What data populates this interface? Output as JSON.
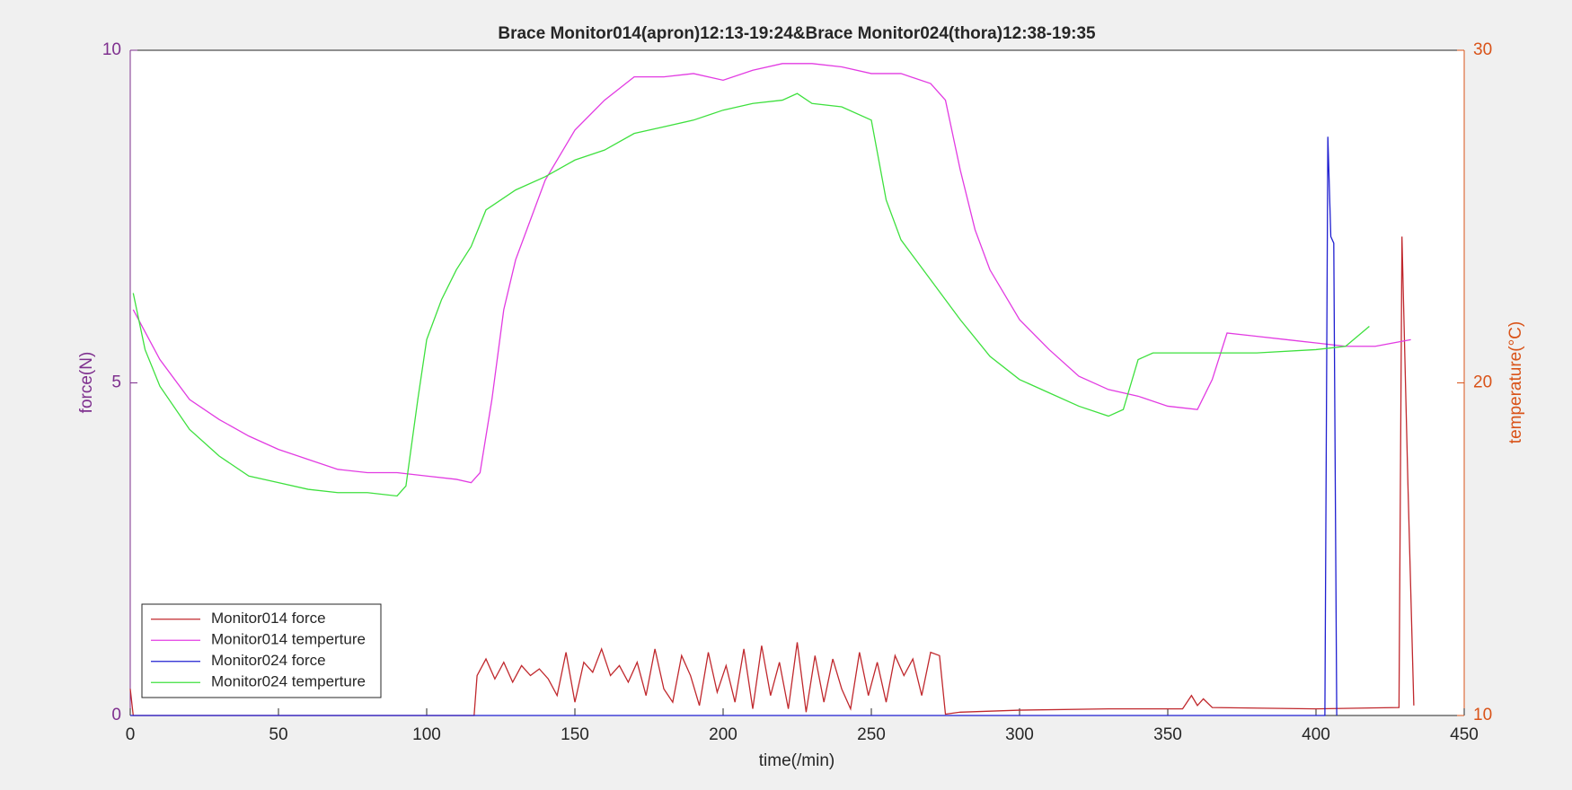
{
  "chart_data": {
    "type": "line",
    "title": "Brace Monitor014(apron)12:13-19:24&Brace Monitor024(thora)12:38-19:35",
    "xlabel": "time(/min)",
    "ylabel": "force(N)",
    "y2label": "temperature(°C)",
    "xlim": [
      0,
      450
    ],
    "xticks": [
      0,
      50,
      100,
      150,
      200,
      250,
      300,
      350,
      400,
      450
    ],
    "ylim": [
      0,
      10
    ],
    "yticks": [
      0,
      5,
      10
    ],
    "y2lim": [
      10,
      30
    ],
    "y2ticks": [
      10,
      20,
      30
    ],
    "ycolor": "#7e2f8e",
    "y2color": "#d95319",
    "legend": "lower left",
    "series": [
      {
        "name": "Monitor014 force",
        "color": "#c0282d",
        "axis": "y",
        "x": [
          0,
          1,
          116,
          117,
          120,
          123,
          126,
          129,
          132,
          135,
          138,
          141,
          144,
          147,
          150,
          153,
          156,
          159,
          162,
          165,
          168,
          171,
          174,
          177,
          180,
          183,
          186,
          189,
          192,
          195,
          198,
          201,
          204,
          207,
          210,
          213,
          216,
          219,
          222,
          225,
          228,
          231,
          234,
          237,
          240,
          243,
          246,
          249,
          252,
          255,
          258,
          261,
          264,
          267,
          270,
          273,
          275,
          280,
          300,
          330,
          355,
          358,
          360,
          362,
          365,
          400,
          428,
          429,
          431,
          433
        ],
        "values": [
          0.4,
          0,
          0,
          0.6,
          0.85,
          0.55,
          0.8,
          0.5,
          0.75,
          0.6,
          0.7,
          0.55,
          0.3,
          0.95,
          0.2,
          0.8,
          0.65,
          1.0,
          0.6,
          0.75,
          0.5,
          0.8,
          0.3,
          1.0,
          0.4,
          0.2,
          0.9,
          0.6,
          0.15,
          0.95,
          0.35,
          0.75,
          0.2,
          1.0,
          0.1,
          1.05,
          0.3,
          0.8,
          0.1,
          1.1,
          0.05,
          0.9,
          0.2,
          0.85,
          0.4,
          0.1,
          0.95,
          0.3,
          0.8,
          0.2,
          0.9,
          0.6,
          0.85,
          0.3,
          0.95,
          0.9,
          0.02,
          0.05,
          0.08,
          0.1,
          0.1,
          0.3,
          0.15,
          0.25,
          0.12,
          0.1,
          0.12,
          7.2,
          3.5,
          0.15
        ]
      },
      {
        "name": "Monitor014 temperture",
        "color": "#e23be2",
        "axis": "y2",
        "x": [
          1,
          10,
          20,
          30,
          40,
          50,
          60,
          70,
          80,
          90,
          100,
          110,
          115,
          118,
          122,
          126,
          130,
          140,
          150,
          160,
          170,
          180,
          190,
          200,
          210,
          220,
          230,
          240,
          250,
          260,
          270,
          275,
          280,
          285,
          290,
          300,
          310,
          320,
          330,
          340,
          350,
          360,
          365,
          370,
          380,
          390,
          400,
          410,
          420,
          432
        ],
        "values": [
          22.2,
          20.7,
          19.5,
          18.9,
          18.4,
          18.0,
          17.7,
          17.4,
          17.3,
          17.3,
          17.2,
          17.1,
          17.0,
          17.3,
          19.5,
          22.2,
          23.7,
          26.1,
          27.6,
          28.5,
          29.2,
          29.2,
          29.3,
          29.1,
          29.4,
          29.6,
          29.6,
          29.5,
          29.3,
          29.3,
          29.0,
          28.5,
          26.4,
          24.6,
          23.4,
          21.9,
          21.0,
          20.2,
          19.8,
          19.6,
          19.3,
          19.2,
          20.1,
          21.5,
          21.4,
          21.3,
          21.2,
          21.1,
          21.1,
          21.3
        ]
      },
      {
        "name": "Monitor024 force",
        "color": "#1f1fd0",
        "axis": "y",
        "x": [
          0,
          403,
          404,
          405,
          406,
          407
        ],
        "values": [
          0,
          0,
          8.7,
          7.2,
          7.1,
          0
        ]
      },
      {
        "name": "Monitor024 temperture",
        "color": "#3ee03e",
        "axis": "y2",
        "x": [
          1,
          5,
          10,
          20,
          30,
          40,
          50,
          60,
          70,
          80,
          90,
          93,
          97,
          100,
          105,
          110,
          115,
          120,
          130,
          140,
          150,
          160,
          170,
          180,
          190,
          200,
          210,
          220,
          225,
          230,
          240,
          250,
          255,
          260,
          270,
          280,
          290,
          300,
          310,
          320,
          330,
          335,
          340,
          345,
          360,
          380,
          400,
          410,
          418
        ],
        "values": [
          22.7,
          21.0,
          19.9,
          18.6,
          17.8,
          17.2,
          17.0,
          16.8,
          16.7,
          16.7,
          16.6,
          16.9,
          19.5,
          21.3,
          22.5,
          23.4,
          24.1,
          25.2,
          25.8,
          26.2,
          26.7,
          27.0,
          27.5,
          27.7,
          27.9,
          28.2,
          28.4,
          28.5,
          28.7,
          28.4,
          28.3,
          27.9,
          25.5,
          24.3,
          23.1,
          21.9,
          20.8,
          20.1,
          19.7,
          19.3,
          19.0,
          19.2,
          20.7,
          20.9,
          20.9,
          20.9,
          21.0,
          21.1,
          21.7
        ]
      }
    ]
  }
}
